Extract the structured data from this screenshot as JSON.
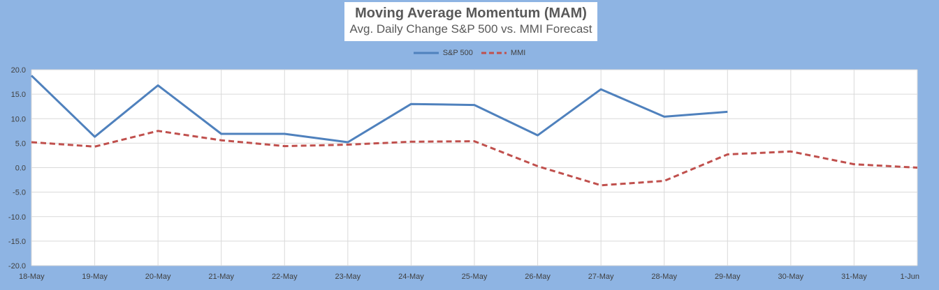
{
  "chart_data": {
    "type": "line",
    "title": "Moving Average Momentum (MAM)",
    "subtitle": "Avg. Daily Change S&P 500 vs. MMI Forecast",
    "categories": [
      "18-May",
      "19-May",
      "20-May",
      "21-May",
      "22-May",
      "23-May",
      "24-May",
      "25-May",
      "26-May",
      "27-May",
      "28-May",
      "29-May",
      "30-May",
      "31-May",
      "1-Jun"
    ],
    "ylim": [
      -20,
      20
    ],
    "yticks": [
      "20.0",
      "15.0",
      "10.0",
      "5.0",
      "0.0",
      "-5.0",
      "-10.0",
      "-15.0",
      "-20.0"
    ],
    "grid": true,
    "legend_position": "top-center",
    "series": [
      {
        "name": "S&P 500",
        "color": "#4f81bd",
        "style": "solid",
        "values": [
          18.8,
          6.3,
          16.8,
          6.9,
          6.9,
          5.2,
          13.0,
          12.8,
          6.6,
          16.0,
          10.4,
          11.4,
          null,
          null,
          null
        ]
      },
      {
        "name": "MMI",
        "color": "#c0504d",
        "style": "dashed",
        "values": [
          5.2,
          4.3,
          7.5,
          5.6,
          4.4,
          4.7,
          5.3,
          5.4,
          0.3,
          -3.6,
          -2.7,
          2.7,
          3.3,
          0.7,
          0.0
        ]
      }
    ]
  }
}
